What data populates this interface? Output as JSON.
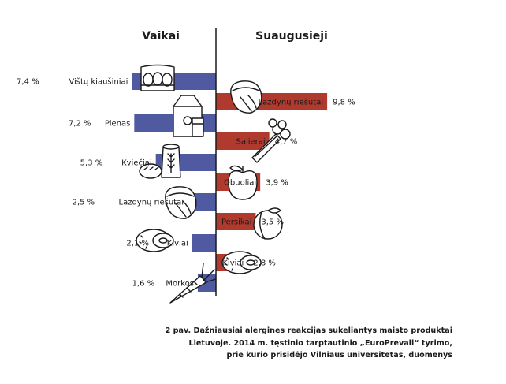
{
  "chart_data": {
    "type": "bar",
    "orientation": "horizontal",
    "unit": "%",
    "colors": {
      "children": "#4f5aa0",
      "adults": "#b03a2e",
      "axis": "#1a1a1a"
    },
    "left": {
      "title": "Vaikai",
      "items": [
        {
          "label": "Vištų kiaušiniai",
          "value": 7.4,
          "value_label": "7,4 %",
          "icon": "eggs-carton-icon"
        },
        {
          "label": "Pienas",
          "value": 7.2,
          "value_label": "7,2 %",
          "icon": "milk-carton-icon"
        },
        {
          "label": "Kviečiai",
          "value": 5.3,
          "value_label": "5,3 %",
          "icon": "wheat-flour-bread-icon"
        },
        {
          "label": "Lazdynų riešutai",
          "value": 2.5,
          "value_label": "2,5 %",
          "icon": "hazelnut-icon"
        },
        {
          "label": "Kiviai",
          "value": 2.1,
          "value_label": "2,1 %",
          "icon": "kiwi-icon"
        },
        {
          "label": "Morkos",
          "value": 1.6,
          "value_label": "1,6 %",
          "icon": "carrot-icon"
        }
      ]
    },
    "right": {
      "title": "Suaugusieji",
      "items": [
        {
          "label": "Lazdynų riešutai",
          "value": 9.8,
          "value_label": "9,8 %",
          "icon": "hazelnut-icon"
        },
        {
          "label": "Salierai",
          "value": 4.7,
          "value_label": "4,7 %",
          "icon": "celery-icon"
        },
        {
          "label": "Obuoliai",
          "value": 3.9,
          "value_label": "3,9 %",
          "icon": "apple-icon"
        },
        {
          "label": "Persikai",
          "value": 3.5,
          "value_label": "3,5 %",
          "icon": "peach-icon"
        },
        {
          "label": "Kiviai",
          "value": 2.8,
          "value_label": "2,8 %",
          "icon": "kiwi-icon"
        }
      ]
    }
  },
  "caption": {
    "line1": "2 pav. Dažniausiai alergines reakcijas sukeliantys maisto produktai",
    "line2": "Lietuvoje. 2014 m. tęstinio tarptautinio „EuroPrevall“ tyrimo,",
    "line3": "prie kurio prisidėjo Vilniaus universitetas, duomenys"
  }
}
